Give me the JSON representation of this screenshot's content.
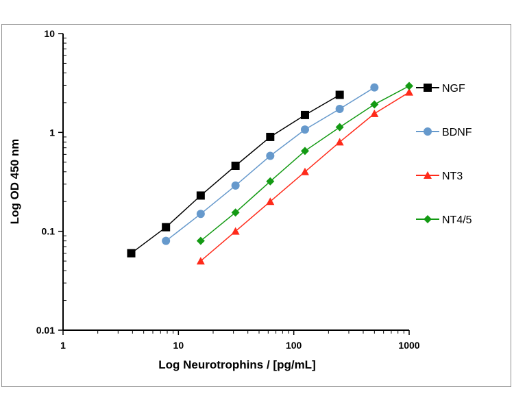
{
  "chart_data": {
    "type": "line",
    "title": "",
    "xlabel": "Log Neurotrophins / [pg/mL]",
    "ylabel": "Log OD 450 nm",
    "xscale": "log",
    "yscale": "log",
    "xlim": [
      1,
      1000
    ],
    "ylim": [
      0.01,
      10
    ],
    "x_ticks": [
      "1",
      "10",
      "100",
      "1000"
    ],
    "y_ticks": [
      "0.01",
      "0.1",
      "1",
      "10"
    ],
    "grid": false,
    "legend_position": "right",
    "series": [
      {
        "name": "NGF",
        "color": "#000000",
        "marker": "square",
        "x": [
          3.9,
          7.8,
          15.6,
          31.25,
          62.5,
          125,
          250
        ],
        "y": [
          0.06,
          0.11,
          0.23,
          0.46,
          0.9,
          1.5,
          2.4
        ]
      },
      {
        "name": "BDNF",
        "color": "#6699cc",
        "marker": "circle",
        "x": [
          7.8,
          15.6,
          31.25,
          62.5,
          125,
          250,
          500
        ],
        "y": [
          0.08,
          0.15,
          0.29,
          0.58,
          1.07,
          1.73,
          2.85
        ]
      },
      {
        "name": "NT3",
        "color": "#ff2a1a",
        "marker": "triangle",
        "x": [
          15.6,
          31.25,
          62.5,
          125,
          250,
          500,
          1000
        ],
        "y": [
          0.05,
          0.1,
          0.2,
          0.4,
          0.8,
          1.55,
          2.55
        ]
      },
      {
        "name": "NT4/5",
        "color": "#139a13",
        "marker": "diamond",
        "x": [
          15.6,
          31.25,
          62.5,
          125,
          250,
          500,
          1000
        ],
        "y": [
          0.08,
          0.155,
          0.32,
          0.65,
          1.13,
          1.92,
          2.95
        ]
      }
    ]
  }
}
